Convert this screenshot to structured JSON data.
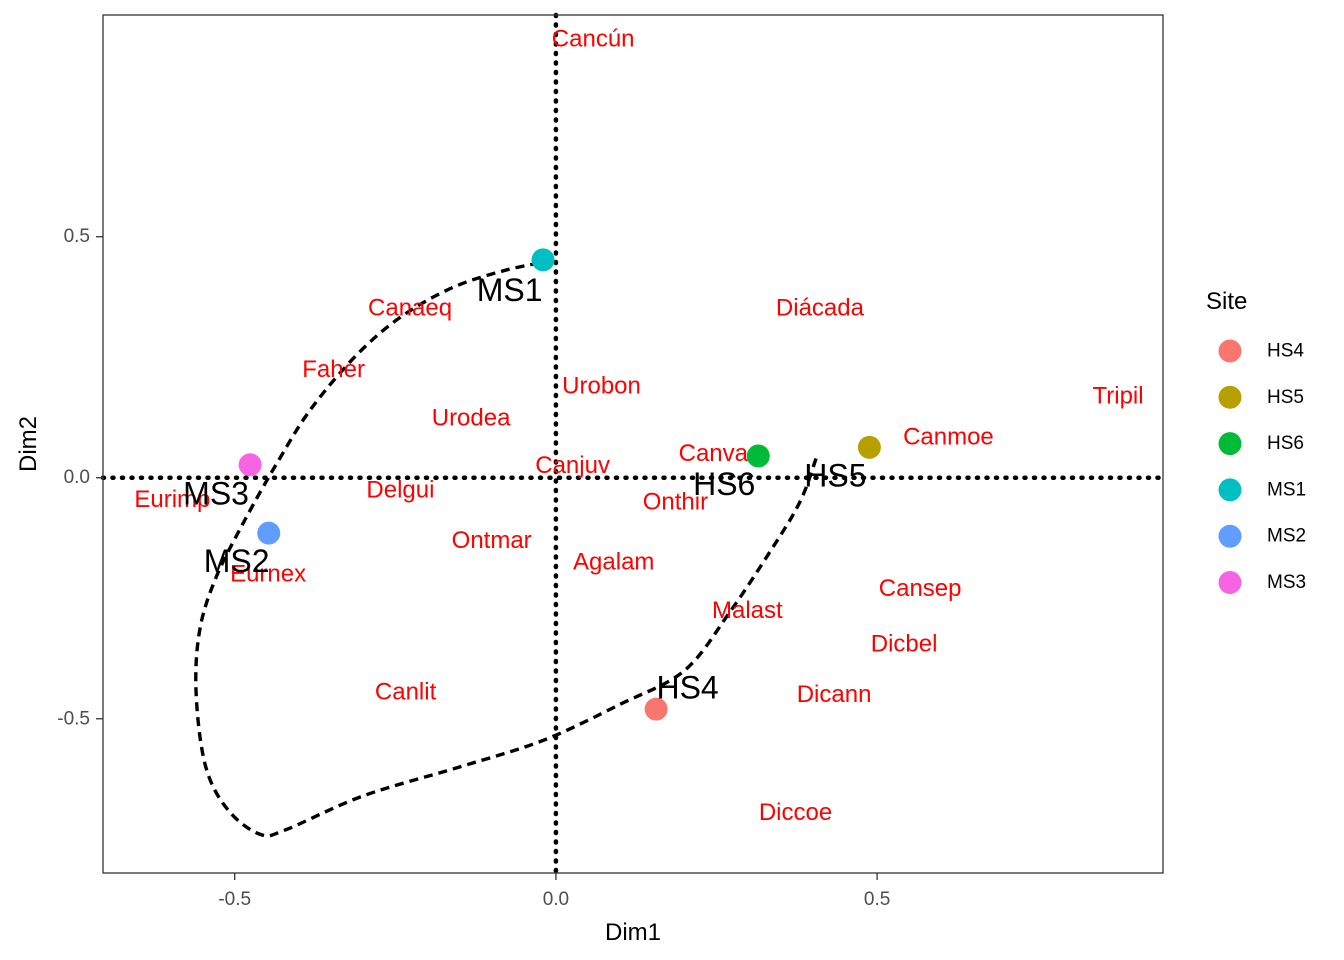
{
  "chart_data": {
    "type": "scatter",
    "title": "",
    "xlabel": "Dim1",
    "ylabel": "Dim2",
    "xlim": [
      -0.705,
      0.945
    ],
    "ylim": [
      -0.82,
      0.96
    ],
    "x_ticks": [
      -0.5,
      0.0,
      0.5
    ],
    "x_tick_labels": [
      "-0.5",
      "0.0",
      "0.5"
    ],
    "y_ticks": [
      -0.5,
      0.0,
      0.5
    ],
    "y_tick_labels": [
      "-0.5",
      "0.0",
      "0.5"
    ],
    "grid": false,
    "reference_lines": [
      {
        "axis": "x",
        "value": 0,
        "style": "dotted"
      },
      {
        "axis": "y",
        "value": 0,
        "style": "dotted"
      }
    ],
    "legend": {
      "title": "Site",
      "position": "right",
      "entries": [
        {
          "name": "HS4",
          "color": "#F8766D"
        },
        {
          "name": "HS5",
          "color": "#B79F00"
        },
        {
          "name": "HS6",
          "color": "#00BA38"
        },
        {
          "name": "MS1",
          "color": "#00BFC4"
        },
        {
          "name": "MS2",
          "color": "#619CFF"
        },
        {
          "name": "MS3",
          "color": "#F564E3"
        }
      ]
    },
    "sites": [
      {
        "name": "HS4",
        "x": 0.156,
        "y": -0.48,
        "color": "#F8766D"
      },
      {
        "name": "HS5",
        "x": 0.488,
        "y": 0.063,
        "color": "#B79F00"
      },
      {
        "name": "HS6",
        "x": 0.315,
        "y": 0.045,
        "color": "#00BA38"
      },
      {
        "name": "MS1",
        "x": -0.02,
        "y": 0.452,
        "color": "#00BFC4"
      },
      {
        "name": "MS2",
        "x": -0.447,
        "y": -0.115,
        "color": "#619CFF"
      },
      {
        "name": "MS3",
        "x": -0.476,
        "y": 0.027,
        "color": "#F564E3"
      }
    ],
    "site_labels": [
      {
        "text": "HS4",
        "x": 0.205,
        "y": -0.435
      },
      {
        "text": "HS5",
        "x": 0.435,
        "y": 0.005
      },
      {
        "text": "HS6",
        "x": 0.262,
        "y": -0.013
      },
      {
        "text": "MS1",
        "x": -0.072,
        "y": 0.39
      },
      {
        "text": "MS2",
        "x": -0.497,
        "y": -0.173
      },
      {
        "text": "MS3",
        "x": -0.529,
        "y": -0.033
      }
    ],
    "species_color": "#FF0000",
    "species": [
      {
        "text": "Cancún",
        "x": 0.058,
        "y": 0.91
      },
      {
        "text": "Canaeq",
        "x": -0.227,
        "y": 0.352
      },
      {
        "text": "Diácada",
        "x": 0.411,
        "y": 0.352
      },
      {
        "text": "Faher",
        "x": -0.346,
        "y": 0.225
      },
      {
        "text": "Urobon",
        "x": 0.071,
        "y": 0.19
      },
      {
        "text": "Tripil",
        "x": 0.875,
        "y": 0.17
      },
      {
        "text": "Urodea",
        "x": -0.132,
        "y": 0.124
      },
      {
        "text": "Canmoe",
        "x": 0.611,
        "y": 0.085
      },
      {
        "text": "Canva",
        "x": 0.245,
        "y": 0.05
      },
      {
        "text": "Canjuv",
        "x": 0.026,
        "y": 0.025
      },
      {
        "text": "Delgui",
        "x": -0.242,
        "y": -0.025
      },
      {
        "text": "Eurimp",
        "x": -0.597,
        "y": -0.045
      },
      {
        "text": "Onthir",
        "x": 0.186,
        "y": -0.05
      },
      {
        "text": "Ontmar",
        "x": -0.1,
        "y": -0.13
      },
      {
        "text": "Agalam",
        "x": 0.09,
        "y": -0.175
      },
      {
        "text": "Eurnex",
        "x": -0.448,
        "y": -0.2
      },
      {
        "text": "Cansep",
        "x": 0.567,
        "y": -0.23
      },
      {
        "text": "Malast",
        "x": 0.298,
        "y": -0.275
      },
      {
        "text": "Dicbel",
        "x": 0.542,
        "y": -0.345
      },
      {
        "text": "Canlit",
        "x": -0.234,
        "y": -0.445
      },
      {
        "text": "Dicann",
        "x": 0.433,
        "y": -0.45
      },
      {
        "text": "Diccoe",
        "x": 0.373,
        "y": -0.695
      }
    ],
    "hull": [
      [
        0.405,
        0.04
      ],
      [
        0.38,
        -0.05
      ],
      [
        0.335,
        -0.15
      ],
      [
        0.27,
        -0.28
      ],
      [
        0.2,
        -0.4
      ],
      [
        0.1,
        -0.47
      ],
      [
        -0.02,
        -0.545
      ],
      [
        -0.15,
        -0.6
      ],
      [
        -0.3,
        -0.66
      ],
      [
        -0.42,
        -0.73
      ],
      [
        -0.46,
        -0.74
      ],
      [
        -0.51,
        -0.69
      ],
      [
        -0.545,
        -0.6
      ],
      [
        -0.56,
        -0.45
      ],
      [
        -0.555,
        -0.32
      ],
      [
        -0.53,
        -0.21
      ],
      [
        -0.485,
        -0.09
      ],
      [
        -0.43,
        0.04
      ],
      [
        -0.38,
        0.145
      ],
      [
        -0.31,
        0.255
      ],
      [
        -0.24,
        0.335
      ],
      [
        -0.16,
        0.395
      ],
      [
        -0.08,
        0.43
      ],
      [
        -0.015,
        0.448
      ]
    ]
  }
}
